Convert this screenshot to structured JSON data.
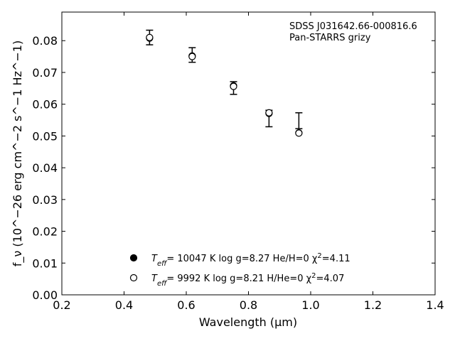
{
  "chart_data": {
    "type": "scatter",
    "title": "",
    "xlabel": "Wavelength (μm)",
    "ylabel": "f_ν (10^−26 erg cm^−2 s^−1 Hz^−1)",
    "xlim": [
      0.2,
      1.4
    ],
    "ylim": [
      0.0,
      0.089
    ],
    "xticks": [
      0.2,
      0.4,
      0.6,
      0.8,
      1.0,
      1.2,
      1.4
    ],
    "xtick_labels": [
      "0.2",
      "0.4",
      "0.6",
      "0.8",
      "1.0",
      "1.2",
      "1.4"
    ],
    "yticks": [
      0.0,
      0.01,
      0.02,
      0.03,
      0.04,
      0.05,
      0.06,
      0.07,
      0.08
    ],
    "ytick_labels": [
      "0.00",
      "0.01",
      "0.02",
      "0.03",
      "0.04",
      "0.05",
      "0.06",
      "0.07",
      "0.08"
    ],
    "grid": false,
    "annotations": [
      "SDSS J031642.66-000816.6",
      "Pan-STARRS grizy"
    ],
    "observed": {
      "x": [
        0.482,
        0.619,
        0.752,
        0.866,
        0.962
      ],
      "y": [
        0.081,
        0.0755,
        0.0651,
        0.0555,
        0.0548
      ],
      "yerr": [
        0.0023,
        0.0023,
        0.002,
        0.0026,
        0.0025
      ]
    },
    "series": [
      {
        "name": "T_eff= 10047 K  log g=8.27  He/H=0  χ²=4.11",
        "marker": "filled-circle",
        "x": [
          0.482,
          0.619,
          0.752,
          0.866,
          0.962
        ],
        "y": [
          0.0808,
          0.0752,
          0.0658,
          0.0571,
          0.051
        ]
      },
      {
        "name": "T_eff=  9992 K  log g=8.21  H/He=0  χ²=4.07",
        "marker": "open-circle",
        "x": [
          0.482,
          0.619,
          0.752,
          0.866,
          0.962
        ],
        "y": [
          0.081,
          0.075,
          0.0656,
          0.0573,
          0.0509
        ]
      }
    ],
    "legend_position": "lower-center",
    "legend": [
      {
        "prefix": "T",
        "sub": "eff",
        "mid": "= 10047 K  log g=8.27  He/H=0  χ",
        "sup": "2",
        "suffix": "=4.11"
      },
      {
        "prefix": "T",
        "sub": "eff",
        "mid": "=  9992 K  log g=8.21  H/He=0  χ",
        "sup": "2",
        "suffix": "=4.07"
      }
    ],
    "colors": {
      "marker": "#000000",
      "errorbar": "#000000"
    }
  }
}
